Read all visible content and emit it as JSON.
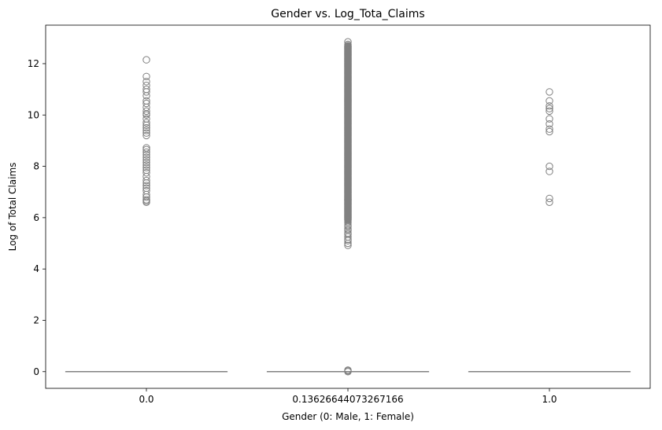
{
  "chart_data": {
    "type": "box",
    "title": "Gender vs. Log_Tota_Claims",
    "xlabel": "Gender (0: Male, 1: Female)",
    "ylabel": "Log of Total Claims",
    "categories": [
      "0.0",
      "0.13626644073267166",
      "1.0"
    ],
    "ylim": [
      -0.65,
      13.5
    ],
    "yticks": [
      0,
      2,
      4,
      6,
      8,
      10,
      12
    ],
    "grid": false,
    "legend": "none",
    "box_color": "#808080",
    "boxes": [
      {
        "category": "0.0",
        "q1": 0,
        "median": 0,
        "q3": 0,
        "whisker_low": 0,
        "whisker_high": 0,
        "outliers": [
          6.6,
          6.65,
          6.7,
          6.8,
          6.9,
          7.05,
          7.15,
          7.25,
          7.35,
          7.45,
          7.6,
          7.75,
          7.85,
          7.95,
          8.05,
          8.15,
          8.25,
          8.35,
          8.45,
          8.55,
          8.65,
          8.72,
          9.2,
          9.3,
          9.4,
          9.5,
          9.6,
          9.7,
          9.85,
          10.0,
          10.05,
          10.15,
          10.3,
          10.45,
          10.55,
          10.75,
          10.9,
          11.0,
          11.15,
          11.3,
          11.5,
          12.15
        ]
      },
      {
        "category": "0.13626644073267166",
        "q1": 0,
        "median": 0,
        "q3": 0,
        "whisker_low": 0,
        "whisker_high": 0,
        "outliers_dense_range": [
          5.9,
          12.7
        ],
        "outliers": [
          0.0,
          0.03,
          0.06,
          4.92,
          5.0,
          5.1,
          5.15,
          5.25,
          5.35,
          5.4,
          5.5,
          5.55,
          5.65,
          5.7,
          5.8,
          5.85,
          12.75,
          12.85
        ]
      },
      {
        "category": "1.0",
        "q1": 0,
        "median": 0,
        "q3": 0,
        "whisker_low": 0,
        "whisker_high": 0,
        "outliers": [
          6.6,
          6.75,
          7.8,
          8.0,
          9.35,
          9.45,
          9.65,
          9.85,
          10.15,
          10.25,
          10.35,
          10.55,
          10.9
        ]
      }
    ]
  }
}
